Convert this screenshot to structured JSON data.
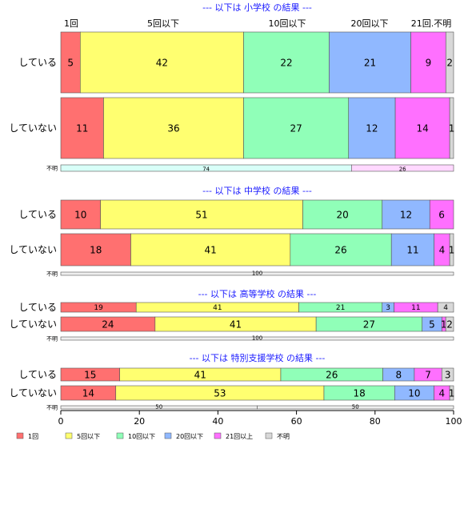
{
  "chart_data": {
    "type": "bar",
    "orientation": "horizontal",
    "stacked": true,
    "xlim": [
      0,
      100
    ],
    "x_ticks": [
      "0",
      "20",
      "40",
      "60",
      "80",
      "100"
    ],
    "category_order": [
      "1回",
      "5回以下",
      "10回以下",
      "20回以下",
      "21回以上",
      "不明"
    ],
    "top_labels": [
      "1回",
      "5回以下",
      "10回以下",
      "20回以下",
      "21回.不明"
    ],
    "legend": [
      {
        "label": "1回",
        "color": "#ff7070"
      },
      {
        "label": "5回以下",
        "color": "#ffff70"
      },
      {
        "label": "10回以下",
        "color": "#90ffb8"
      },
      {
        "label": "20回以下",
        "color": "#90b8ff"
      },
      {
        "label": "21回以上",
        "color": "#ff70ff"
      },
      {
        "label": "不明",
        "color": "#d8d8d8"
      }
    ],
    "legend_placement": "bottom",
    "sections": [
      {
        "title": "--- 以下は 小学校 の結果 ---",
        "rows": [
          {
            "label": "している",
            "values": [
              5,
              42,
              22,
              21,
              9,
              2
            ],
            "labels": [
              "5",
              "42",
              "22",
              "21",
              "9",
              "2"
            ]
          },
          {
            "label": "していない",
            "values": [
              11,
              36,
              27,
              12,
              14,
              1
            ],
            "labels": [
              "11",
              "36",
              "27",
              "12",
              "14",
              "1"
            ]
          },
          {
            "label": "不明",
            "values": [
              74,
              26
            ],
            "labels": [
              "74",
              "26"
            ],
            "colors": [
              "#d8fff8",
              "#ffd8ff"
            ],
            "small": true
          }
        ]
      },
      {
        "title": "--- 以下は 中学校 の結果 ---",
        "rows": [
          {
            "label": "している",
            "values": [
              10,
              51,
              20,
              12,
              6,
              0
            ],
            "labels": [
              "10",
              "51",
              "20",
              "12",
              "6",
              ""
            ]
          },
          {
            "label": "していない",
            "values": [
              18,
              41,
              26,
              11,
              4,
              1
            ],
            "labels": [
              "18",
              "41",
              "26",
              "11",
              "4",
              "1"
            ]
          },
          {
            "label": "不明",
            "values": [
              100
            ],
            "labels": [
              "100"
            ],
            "colors": [
              "#eeeeee"
            ],
            "small": true
          }
        ]
      },
      {
        "title": "--- 以下は 高等学校 の結果 ---",
        "rows": [
          {
            "label": "している",
            "values": [
              19,
              41,
              21,
              3,
              11,
              4
            ],
            "labels": [
              "19",
              "41",
              "21",
              "3",
              "11",
              "4"
            ]
          },
          {
            "label": "していない",
            "values": [
              24,
              41,
              27,
              5,
              1,
              2
            ],
            "labels": [
              "24",
              "41",
              "27",
              "5",
              "1",
              "2"
            ]
          },
          {
            "label": "不明",
            "values": [
              100
            ],
            "labels": [
              "100"
            ],
            "colors": [
              "#eeeeee"
            ],
            "small": true
          }
        ]
      },
      {
        "title": "--- 以下は 特別支援学校 の結果 ---",
        "rows": [
          {
            "label": "している",
            "values": [
              15,
              41,
              26,
              8,
              7,
              3
            ],
            "labels": [
              "15",
              "41",
              "26",
              "8",
              "7",
              "3"
            ]
          },
          {
            "label": "していない",
            "values": [
              14,
              53,
              18,
              10,
              4,
              1
            ],
            "labels": [
              "14",
              "53",
              "18",
              "10",
              "4",
              "1"
            ]
          },
          {
            "label": "不明",
            "values": [
              50,
              50
            ],
            "labels": [
              "50",
              "50"
            ],
            "colors": [
              "#eeeeee",
              "#eeeeee"
            ],
            "small": true
          }
        ]
      }
    ]
  }
}
